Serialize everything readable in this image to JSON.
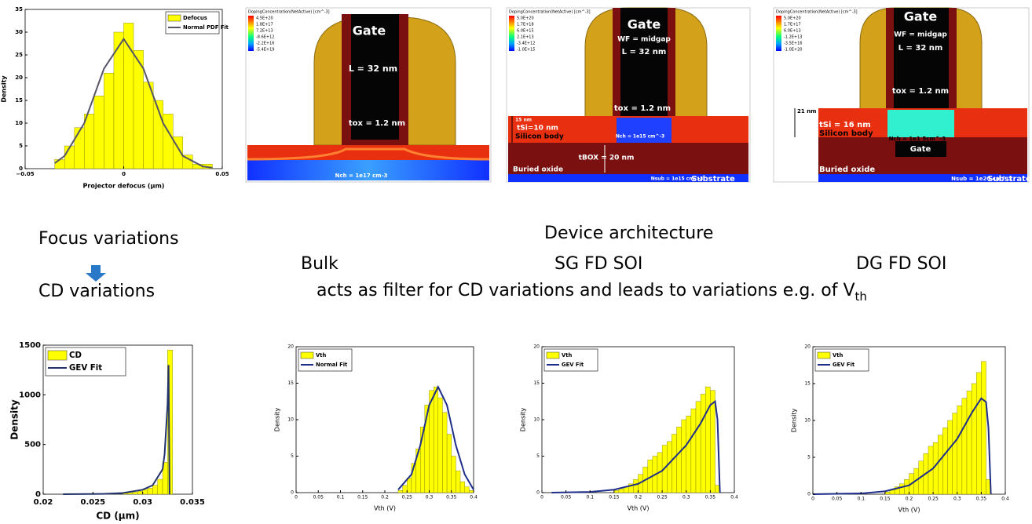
{
  "chart_data": [
    {
      "type": "histogram",
      "xlabel": "Projector defocus (µm)",
      "ylabel": "Density",
      "bins": [
        -0.035,
        -0.03,
        -0.025,
        -0.02,
        -0.015,
        -0.01,
        -0.005,
        0,
        0.005,
        0.01,
        0.015,
        0.02,
        0.025,
        0.03,
        0.035,
        0.04,
        0.045
      ],
      "xlim": [
        -0.05,
        0.05
      ],
      "xticks": [
        {
          "value": -0.05,
          "label": "−0.05"
        },
        0,
        0.05
      ],
      "ylim": [
        0,
        35
      ],
      "yticks": [
        0,
        5,
        10,
        15,
        20,
        25,
        30,
        35
      ],
      "legend": "upper right",
      "series": [
        {
          "name": "Defocus",
          "color": "#ffff00",
          "values": [
            2,
            5,
            9,
            12,
            16,
            21,
            30,
            32,
            26,
            19,
            15,
            12,
            7,
            3,
            1,
            1
          ]
        },
        {
          "name": "Normal PDF Fit",
          "type": "line",
          "color": "#555566",
          "x": [
            -0.035,
            -0.03,
            -0.02,
            -0.01,
            0,
            0.01,
            0.02,
            0.03,
            0.04,
            0.045
          ],
          "values": [
            1.2,
            2.8,
            10,
            22,
            28.5,
            22,
            10,
            2.8,
            0.5,
            0.2
          ]
        }
      ]
    },
    {
      "type": "histogram",
      "xlabel": "CD (µm)",
      "ylabel": "Density",
      "bins": [
        0.028,
        0.0285,
        0.029,
        0.0295,
        0.03,
        0.0305,
        0.031,
        0.0315,
        0.032,
        0.0325,
        0.033
      ],
      "xlim": [
        0.02,
        0.035
      ],
      "xticks": [
        0.02,
        0.025,
        0.03,
        0.035
      ],
      "ylim": [
        0,
        1500
      ],
      "yticks": [
        0,
        500,
        1000,
        1500
      ],
      "legend": "upper left",
      "series": [
        {
          "name": "CD",
          "color": "#ffff00",
          "values": [
            10,
            15,
            20,
            30,
            45,
            60,
            90,
            150,
            320,
            1450
          ]
        },
        {
          "name": "GEV Fit",
          "type": "line",
          "color": "#22336b",
          "x": [
            0.022,
            0.026,
            0.028,
            0.03,
            0.031,
            0.032,
            0.0322,
            0.0325,
            0.0326,
            0.0327
          ],
          "values": [
            0,
            3,
            12,
            45,
            90,
            250,
            400,
            900,
            1300,
            0
          ]
        }
      ]
    },
    {
      "type": "histogram",
      "xlabel": "Vth (V)",
      "ylabel": "Density",
      "bins": [
        0.23,
        0.24,
        0.25,
        0.26,
        0.27,
        0.28,
        0.29,
        0.3,
        0.31,
        0.32,
        0.33,
        0.34,
        0.35,
        0.36,
        0.37,
        0.38,
        0.39,
        0.4
      ],
      "xlim": [
        0,
        0.4
      ],
      "xticks": [
        0,
        0.05,
        0.1,
        0.15,
        0.2,
        0.25,
        0.3,
        0.35,
        0.4
      ],
      "ylim": [
        0,
        20
      ],
      "yticks": [
        0,
        5,
        10,
        15,
        20
      ],
      "legend": "upper left",
      "series": [
        {
          "name": "Vth",
          "color": "#ffff00",
          "values": [
            0.3,
            1,
            2,
            4,
            6,
            9,
            12,
            14,
            14.5,
            13,
            11,
            8,
            5,
            3,
            1.5,
            0.8,
            0.3
          ]
        },
        {
          "name": "Normal Fit",
          "type": "line",
          "color": "#1f2e8a",
          "x": [
            0.23,
            0.26,
            0.28,
            0.3,
            0.32,
            0.34,
            0.36,
            0.38,
            0.4
          ],
          "values": [
            0.4,
            2.5,
            6.5,
            12,
            14.5,
            12,
            6.5,
            2.5,
            0.4
          ]
        }
      ]
    },
    {
      "type": "histogram",
      "xlabel": "Vth (V)",
      "ylabel": "Density",
      "bins": [
        0.15,
        0.16,
        0.17,
        0.18,
        0.19,
        0.2,
        0.21,
        0.22,
        0.23,
        0.24,
        0.25,
        0.26,
        0.27,
        0.28,
        0.29,
        0.3,
        0.31,
        0.32,
        0.33,
        0.34,
        0.35,
        0.36,
        0.37
      ],
      "xlim": [
        0,
        0.4
      ],
      "xticks": [
        0,
        0.05,
        0.1,
        0.15,
        0.2,
        0.25,
        0.3,
        0.35,
        0.4
      ],
      "ylim": [
        0,
        20
      ],
      "yticks": [
        0,
        5,
        10,
        15,
        20
      ],
      "legend": "upper left",
      "series": [
        {
          "name": "Vth",
          "color": "#ffff00",
          "values": [
            0.3,
            0.5,
            0.8,
            1.2,
            1.8,
            2.5,
            3.5,
            4.5,
            5,
            5.5,
            6.5,
            7,
            8,
            9,
            10,
            10.5,
            11.5,
            12.5,
            13.5,
            14.5,
            14,
            1
          ]
        },
        {
          "name": "GEV Fit",
          "type": "line",
          "color": "#1f2e8a",
          "x": [
            0.02,
            0.1,
            0.15,
            0.2,
            0.25,
            0.3,
            0.33,
            0.35,
            0.36,
            0.365,
            0.37
          ],
          "values": [
            0,
            0.1,
            0.4,
            1.2,
            3,
            6.5,
            9.5,
            12,
            12.5,
            10,
            0
          ]
        }
      ]
    },
    {
      "type": "histogram",
      "xlabel": "Vth (V)",
      "ylabel": "Density",
      "bins": [
        0.15,
        0.16,
        0.17,
        0.18,
        0.19,
        0.2,
        0.21,
        0.22,
        0.23,
        0.24,
        0.25,
        0.26,
        0.27,
        0.28,
        0.29,
        0.3,
        0.31,
        0.32,
        0.33,
        0.34,
        0.35,
        0.36,
        0.37
      ],
      "xlim": [
        0,
        0.4
      ],
      "xticks": [
        0,
        0.05,
        0.1,
        0.15,
        0.2,
        0.25,
        0.3,
        0.35,
        0.4
      ],
      "ylim": [
        0,
        20
      ],
      "yticks": [
        0,
        5,
        10,
        15,
        20
      ],
      "legend": "upper left",
      "series": [
        {
          "name": "Vth",
          "color": "#ffff00",
          "values": [
            0.3,
            0.6,
            1,
            1.4,
            2,
            2.8,
            3.5,
            4.5,
            5.5,
            6.5,
            7,
            8,
            9,
            10,
            11,
            12,
            13,
            14,
            15,
            16.5,
            18,
            2
          ]
        },
        {
          "name": "GEV Fit",
          "type": "line",
          "color": "#1f2e8a",
          "x": [
            0,
            0.1,
            0.15,
            0.2,
            0.25,
            0.3,
            0.33,
            0.35,
            0.36,
            0.365,
            0.37
          ],
          "values": [
            0,
            0.1,
            0.4,
            1.2,
            3.5,
            7.5,
            11,
            13,
            12.5,
            9,
            0
          ]
        }
      ]
    }
  ],
  "slide": {
    "focus": "Focus variations",
    "cd": "CD variations",
    "architecture": "Device architecture",
    "bulk": "Bulk",
    "sg": "SG FD SOI",
    "dg": "DG FD SOI",
    "filter": [
      "acts as filter for CD variations and leads to variations e.g. of V",
      "th"
    ]
  },
  "devices": [
    {
      "colorbar_title": "DopingConcentration(NetActive) [cm^-3]",
      "colorbar_ticks": [
        "4.5E+20",
        "1.8E+17",
        "7.2E+13",
        "-8.6E+12",
        "-2.2E+16",
        "-5.4E+19"
      ],
      "labels": [
        "Gate",
        "L = 32 nm",
        "tox = 1.2 nm",
        "Nch = 1e17 cm-3"
      ]
    },
    {
      "colorbar_title": "DopingConcentration(NetActive) [cm^-3]",
      "colorbar_ticks": [
        "5.0E+20",
        "1.7E+18",
        "6.0E+15",
        "2.1E+13",
        "-3.4E+12",
        "-1.0E+15"
      ],
      "labels": [
        "Gate",
        "WF = midgap",
        "L = 32 nm",
        "tox = 1.2 nm",
        "15 nm",
        "tSi=10 nm",
        "Silicon body",
        "Nch = 1e15 cm^-3",
        "tBOX = 20 nm",
        "Buried oxide",
        "Nsub = 1e15 cm^-3",
        "Substrate"
      ]
    },
    {
      "colorbar_title": "DopingConcentration(NetActive) [cm^-3]",
      "colorbar_ticks": [
        "5.0E+20",
        "1.7E+17",
        "6.0E+13",
        "-1.2E+13",
        "-3.5E+16",
        "-1.0E+20"
      ],
      "labels": [
        "Gate",
        "WF = midgap",
        "L = 32 nm",
        "tox = 1.2 nm",
        "21 nm",
        "tSi = 16 nm",
        "Silicon body",
        "Nch = 1e1 5cm^-3",
        "Gate",
        "Buried oxide",
        "Nsub = 1e20 cm^-3",
        "Substrate"
      ]
    }
  ]
}
